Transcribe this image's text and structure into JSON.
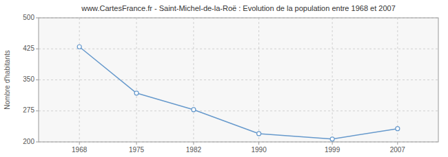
{
  "chart_data": {
    "type": "line",
    "title": "www.CartesFrance.fr - Saint-Michel-de-la-Roë : Evolution de la population entre 1968 et 2007",
    "ylabel": "Nombre d'habitants",
    "x": [
      1968,
      1975,
      1982,
      1990,
      1999,
      2007
    ],
    "values": [
      430,
      318,
      278,
      220,
      207,
      232
    ],
    "color": "#6699cc",
    "marker": "circle",
    "xlim": [
      1963,
      2012
    ],
    "xticks": [
      1968,
      1975,
      1982,
      1990,
      1999,
      2007
    ],
    "ylim": [
      200,
      500
    ],
    "yticks": [
      200,
      275,
      350,
      425,
      500
    ],
    "grid": true
  }
}
